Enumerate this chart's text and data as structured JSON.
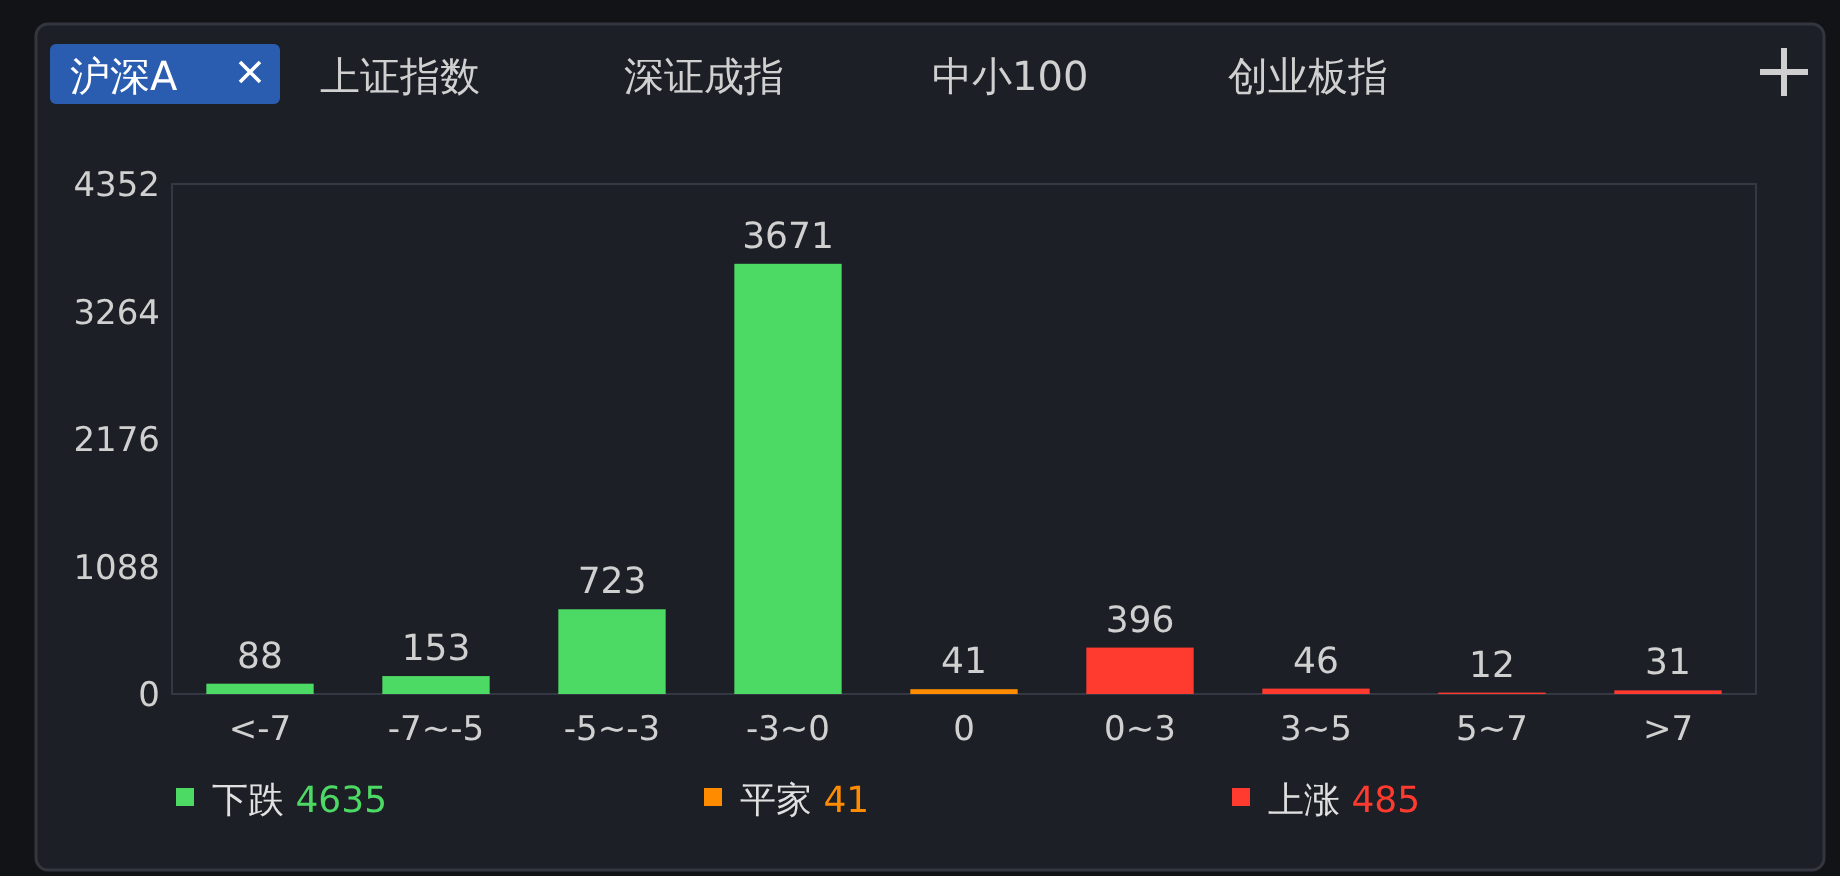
{
  "chart_data": {
    "type": "bar",
    "annotations": [
      "沪深A",
      "上证指数",
      "深证成指",
      "中小100",
      "创业板指"
    ],
    "categories": [
      "<-7",
      "-7~-5",
      "-5~-3",
      "-3~0",
      "0",
      "0~3",
      "3~5",
      "5~7",
      ">7"
    ],
    "stacked": true,
    "data_labels": true,
    "legend": "bottom",
    "ylim": [
      0,
      4352
    ],
    "yticks": [
      0,
      1088,
      2176,
      3264,
      4352
    ],
    "series": [
      {
        "name": "下跌 4635",
        "color": "#4cd964",
        "values": [
          88,
          153,
          723,
          3671,
          null,
          null,
          null,
          null,
          null
        ]
      },
      {
        "name": "平家 41",
        "color": "#ff8c00",
        "values": [
          null,
          null,
          null,
          null,
          41,
          null,
          null,
          null,
          null
        ]
      },
      {
        "name": "上涨 485",
        "color": "#ff3b30",
        "values": [
          null,
          null,
          null,
          null,
          null,
          396,
          46,
          12,
          31
        ]
      }
    ]
  }
}
